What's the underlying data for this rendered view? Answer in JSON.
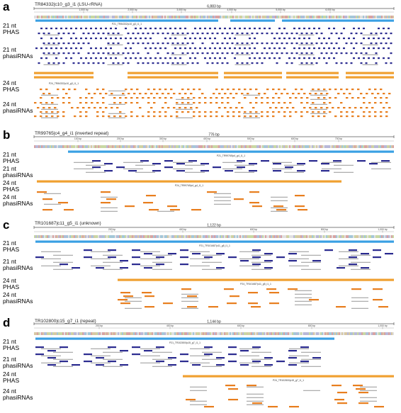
{
  "panels": [
    {
      "letter": "a",
      "title": "TR84332|c10_g3_i1 (LSU-rRNA)",
      "length_label": "6,883 bp",
      "ticks": [
        "1,000 bp",
        "2,000 bp",
        "3,000 bp",
        "4,000 bp",
        "5,000 bp",
        "6,000 bp"
      ],
      "rows": [
        {
          "line1": "21 nt",
          "line2": "PHAS"
        },
        {
          "line1": "21 nt",
          "line2": "phasiRNAs"
        },
        {
          "line1": "24 nt",
          "line2": "PHAS"
        },
        {
          "line1": "24 nt",
          "line2": "phasiRNAs"
        }
      ],
      "phas21_label": "P21_TR84332|c10_g3_i1_1",
      "phas24_label": "P24_TR84332|c10_g3_i1_1",
      "colors": {
        "phas21": "#3aa0e3",
        "sirna21": "#2a2a8f",
        "phas24": "#f0a030",
        "sirna24": "#e87e1e"
      }
    },
    {
      "letter": "b",
      "title": "TR99765|c4_g4_i1 (inverted repeat)",
      "length_label": "776 bp",
      "ticks": [
        "100 bp",
        "200 bp",
        "300 bp",
        "400 bp",
        "500 bp",
        "600 bp",
        "700 bp"
      ],
      "rows": [
        {
          "line1": "21 nt",
          "line2": "PHAS"
        },
        {
          "line1": "21 nt",
          "line2": "phasiRNAs"
        },
        {
          "line1": "24 nt",
          "line2": "PHAS"
        },
        {
          "line1": "24 nt",
          "line2": "phasiRNAs"
        }
      ],
      "phas21_label": "P21_TR99765|c4_g4_i1_1",
      "phas24_label": "P24_TR99765|c4_g4_i1_1",
      "colors": {
        "phas21": "#3aa0e3",
        "sirna21": "#2a2a8f",
        "phas24": "#f0a030",
        "sirna24": "#e87e1e"
      }
    },
    {
      "letter": "c",
      "title": "TR101687|c11_g5_i1 (unknown)",
      "length_label": "1,122 bp",
      "ticks": [
        "200 bp",
        "400 bp",
        "600 bp",
        "800 bp",
        "1,000 bp"
      ],
      "rows": [
        {
          "line1": "21 nt",
          "line2": "PHAS"
        },
        {
          "line1": "21 nt",
          "line2": "phasiRNAs"
        },
        {
          "line1": "24 nt",
          "line2": "PHAS"
        },
        {
          "line1": "24 nt",
          "line2": "phasiRNAs"
        }
      ],
      "phas21_label": "P21_TR101687|c11_g5_i1_1",
      "phas24_label": "P24_TR101687|c11_g5_i1_1",
      "colors": {
        "phas21": "#3aa0e3",
        "sirna21": "#2a2a8f",
        "phas24": "#f0a030",
        "sirna24": "#e87e1e"
      }
    },
    {
      "letter": "d",
      "title": "TR102800|c15_g7_i1 (repeat)",
      "length_label": "1,144 bp",
      "ticks": [
        "200 bp",
        "400 bp",
        "600 bp",
        "800 bp",
        "1,000 bp"
      ],
      "rows": [
        {
          "line1": "21 nt",
          "line2": "PHAS"
        },
        {
          "line1": "21 nt",
          "line2": "phasiRNAs"
        },
        {
          "line1": "24 nt",
          "line2": "PHAS"
        },
        {
          "line1": "24 nt",
          "line2": "phasiRNAs"
        }
      ],
      "phas21_label": "P21_TR102800|c15_g7_i1_1",
      "phas24_label": "P24_TR102800|c15_g7_i1_1",
      "colors": {
        "phas21": "#3aa0e3",
        "sirna21": "#2a2a8f",
        "phas24": "#f0a030",
        "sirna24": "#e87e1e"
      }
    }
  ]
}
